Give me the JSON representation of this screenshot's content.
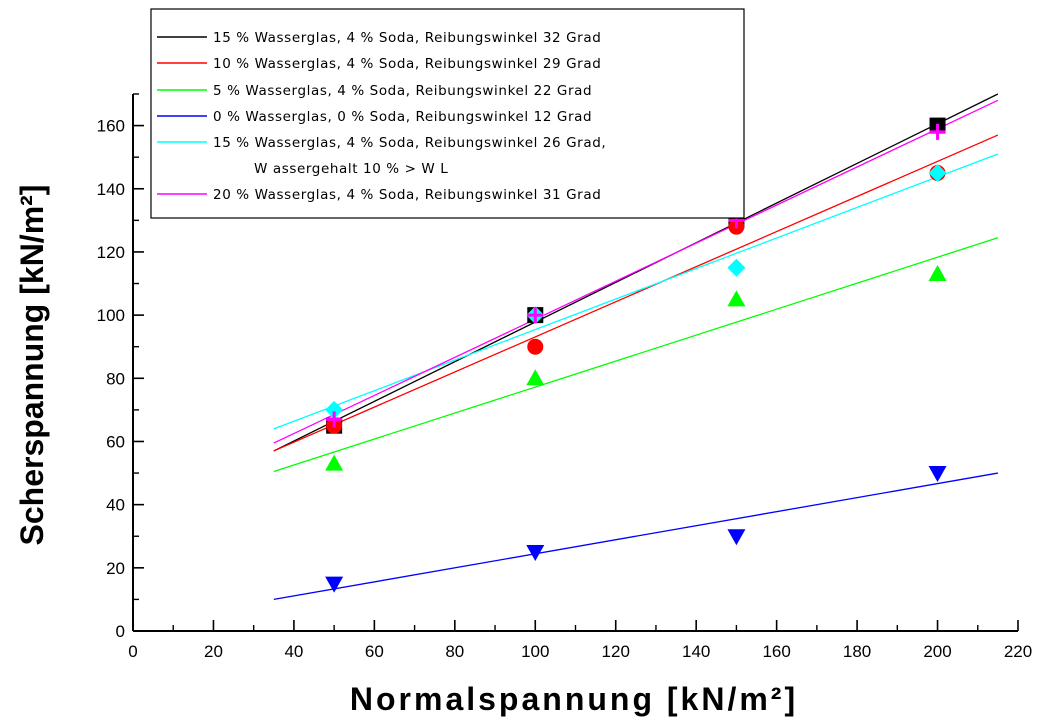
{
  "chart_data": {
    "type": "scatter",
    "xlabel": "Normalspannung [kN/m²]",
    "ylabel": "Scherspannung [kN/m²]",
    "xlim": [
      0,
      220
    ],
    "ylim": [
      0,
      170
    ],
    "x_ticks": [
      0,
      20,
      40,
      60,
      80,
      100,
      120,
      140,
      160,
      180,
      200,
      220
    ],
    "y_ticks": [
      0,
      20,
      40,
      60,
      80,
      100,
      120,
      140,
      160
    ],
    "grid": false,
    "legend_position": "top-left",
    "series": [
      {
        "name": "15 % Wasserglas, 4 % Soda, Reibungswinkel 32 Grad",
        "color": "#000000",
        "marker": "square",
        "x": [
          50,
          100,
          150,
          200
        ],
        "y": [
          65,
          100,
          130,
          160
        ],
        "fit": {
          "x": [
            35,
            215
          ],
          "y": [
            57,
            170
          ]
        }
      },
      {
        "name": "10 % Wasserglas, 4 % Soda, Reibungswinkel 29 Grad",
        "color": "#ff0000",
        "marker": "circle",
        "x": [
          50,
          100,
          150,
          200
        ],
        "y": [
          65,
          90,
          128,
          145
        ],
        "fit": {
          "x": [
            35,
            215
          ],
          "y": [
            57,
            157
          ]
        }
      },
      {
        "name": "5 % Wasserglas, 4 % Soda, Reibungswinkel 22 Grad",
        "color": "#00ff00",
        "marker": "triangle-up",
        "x": [
          50,
          100,
          150,
          200
        ],
        "y": [
          53,
          80,
          105,
          113
        ],
        "fit": {
          "x": [
            35,
            215
          ],
          "y": [
            50.5,
            124.5
          ]
        }
      },
      {
        "name": "0 % Wasserglas, 0 % Soda, Reibungswinkel 12 Grad",
        "color": "#0000ff",
        "marker": "triangle-down",
        "x": [
          50,
          100,
          150,
          200
        ],
        "y": [
          15,
          25,
          30,
          50
        ],
        "fit": {
          "x": [
            35,
            215
          ],
          "y": [
            10,
            50
          ]
        }
      },
      {
        "name": "15 % Wasserglas, 4 % Soda, Reibungswinkel 26 Grad,",
        "name_line2": "W assergehalt 10 % > W L",
        "color": "#00ffff",
        "marker": "diamond",
        "x": [
          50,
          100,
          150,
          200
        ],
        "y": [
          70,
          100,
          115,
          145
        ],
        "fit": {
          "x": [
            35,
            215
          ],
          "y": [
            64,
            151
          ]
        }
      },
      {
        "name": "20 % Wasserglas, 4 % Soda, Reibungswinkel 31 Grad",
        "color": "#ff00ff",
        "marker": "plus",
        "x": [
          50,
          100,
          150,
          200
        ],
        "y": [
          67,
          100,
          130,
          158
        ],
        "fit": {
          "x": [
            35,
            215
          ],
          "y": [
            59.5,
            168
          ]
        }
      }
    ]
  }
}
